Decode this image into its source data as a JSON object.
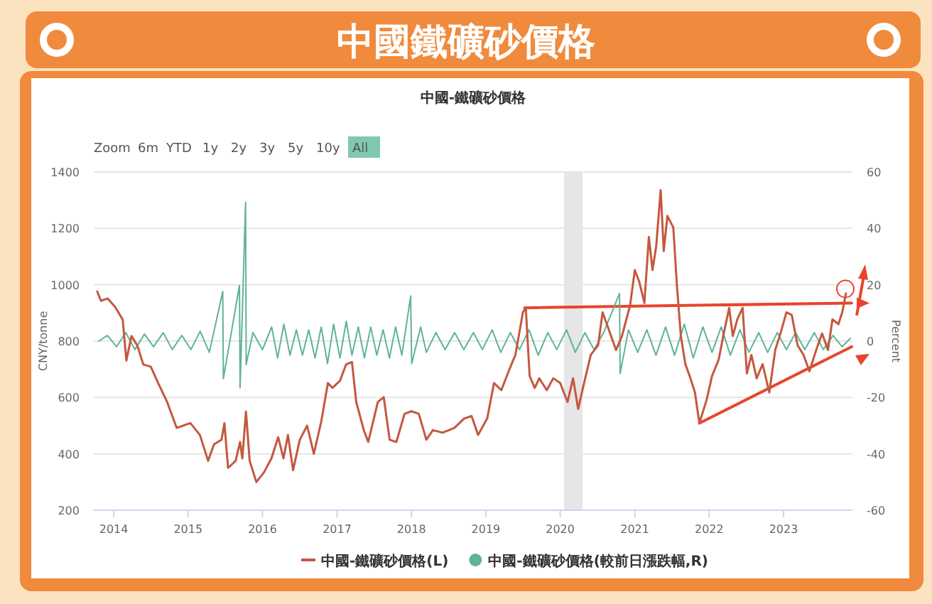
{
  "chart_data": {
    "type": "line",
    "title": "中國鐵礦砂價格",
    "subtitle": "中國-鐵礦砂價格",
    "annotations": [
      "Zoom",
      "6m",
      "YTD",
      "1y",
      "2y",
      "3y",
      "5y",
      "10y",
      "All"
    ],
    "ylabel": "CNY/tonne",
    "y2label": "Percent",
    "xlim": [
      "2013-09-25",
      "2023-12-05"
    ],
    "xticks": [
      "2014",
      "2015",
      "2016",
      "2017",
      "2018",
      "2019",
      "2020",
      "2021",
      "2022",
      "2023"
    ],
    "ylim": [
      200,
      1400
    ],
    "yticks": [
      200,
      400,
      600,
      800,
      1000,
      1200,
      1400
    ],
    "y2lim": [
      -60,
      60
    ],
    "y2ticks": [
      -60,
      -40,
      -20,
      0,
      20,
      40,
      60
    ],
    "grid": "y",
    "legend": "bottom",
    "bands": [
      {
        "axis": "x",
        "from": "2020-01-20",
        "to": "2020-04-20",
        "color": "#e6e6e6"
      }
    ],
    "series": [
      {
        "name": "中國-鐵礦砂價格(L)",
        "color": "#c4583f",
        "x": [
          "2013-10-12",
          "2013-10-30",
          "2013-12-02",
          "2014-01-08",
          "2014-02-14",
          "2014-03-04",
          "2014-03-29",
          "2014-04-27",
          "2014-05-26",
          "2014-07-02",
          "2014-08-07",
          "2014-09-20",
          "2014-11-06",
          "2015-01-12",
          "2015-02-28",
          "2015-04-09",
          "2015-05-08",
          "2015-06-14",
          "2015-06-28",
          "2015-07-16",
          "2015-08-22",
          "2015-09-13",
          "2015-09-24",
          "2015-10-12",
          "2015-10-30",
          "2015-12-02",
          "2016-01-08",
          "2016-02-14",
          "2016-03-18",
          "2016-04-13",
          "2016-05-05",
          "2016-05-30",
          "2016-07-02",
          "2016-08-07",
          "2016-09-09",
          "2016-10-16",
          "2016-11-17",
          "2016-12-09",
          "2017-01-15",
          "2017-02-14",
          "2017-03-15",
          "2017-04-05",
          "2017-05-12",
          "2017-06-03",
          "2017-07-20",
          "2017-08-18",
          "2017-09-16",
          "2017-10-19",
          "2017-11-28",
          "2018-01-01",
          "2018-02-06",
          "2018-03-15",
          "2018-04-16",
          "2018-06-03",
          "2018-07-31",
          "2018-09-16",
          "2018-10-23",
          "2018-11-24",
          "2019-01-01",
          "2019-01-08",
          "2019-02-10",
          "2019-03-18",
          "2019-04-23",
          "2019-05-26",
          "2019-07-02",
          "2019-07-16",
          "2019-08-04",
          "2019-08-29",
          "2019-09-20",
          "2019-10-27",
          "2019-11-28",
          "2020-01-01",
          "2020-02-06",
          "2020-03-04",
          "2020-03-29",
          "2020-04-27",
          "2020-05-30",
          "2020-07-05",
          "2020-07-27",
          "2020-09-02",
          "2020-10-01",
          "2020-10-30",
          "2020-12-09",
          "2021-01-01",
          "2021-01-23",
          "2021-02-17",
          "2021-03-11",
          "2021-03-29",
          "2021-04-16",
          "2021-05-08",
          "2021-05-23",
          "2021-06-10",
          "2021-07-09",
          "2021-07-27",
          "2021-08-15",
          "2021-09-06",
          "2021-10-01",
          "2021-10-23",
          "2021-11-14",
          "2021-12-20",
          "2022-01-15",
          "2022-02-17",
          "2022-03-11",
          "2022-04-09",
          "2022-04-27",
          "2022-05-19",
          "2022-06-14",
          "2022-07-05",
          "2022-07-27",
          "2022-08-22",
          "2022-09-20",
          "2022-10-23",
          "2022-11-21",
          "2022-12-20",
          "2023-01-15",
          "2023-02-10",
          "2023-03-11",
          "2023-04-09",
          "2023-05-08",
          "2023-06-10",
          "2023-07-09",
          "2023-08-07",
          "2023-08-29",
          "2023-09-27",
          "2023-10-16",
          "2023-11-03"
        ],
        "values": [
          976,
          943,
          951,
          921,
          876,
          731,
          818,
          784,
          717,
          709,
          651,
          584,
          492,
          509,
          467,
          375,
          434,
          450,
          509,
          350,
          375,
          442,
          384,
          550,
          375,
          300,
          334,
          384,
          459,
          384,
          467,
          342,
          450,
          500,
          400,
          517,
          651,
          634,
          659,
          717,
          726,
          584,
          484,
          442,
          584,
          601,
          450,
          442,
          542,
          551,
          542,
          450,
          484,
          475,
          492,
          525,
          534,
          467,
          517,
          526,
          651,
          626,
          693,
          751,
          902,
          918,
          676,
          634,
          668,
          626,
          668,
          651,
          584,
          668,
          559,
          651,
          751,
          785,
          902,
          827,
          768,
          818,
          927,
          1052,
          1010,
          935,
          1169,
          1052,
          1136,
          1336,
          1119,
          1244,
          1203,
          994,
          818,
          718,
          668,
          618,
          509,
          593,
          676,
          735,
          818,
          918,
          818,
          877,
          918,
          685,
          751,
          668,
          718,
          618,
          768,
          835,
          902,
          893,
          785,
          751,
          693,
          768,
          827,
          768,
          877,
          860,
          902,
          969
        ]
      },
      {
        "name": "中國-鐵礦砂價格(較前日漲跌幅,R)",
        "color": "#5fb39a",
        "axis": "y2",
        "x": [
          "2013-10-20",
          "2013-12-01",
          "2014-01-15",
          "2014-03-01",
          "2014-04-15",
          "2014-06-01",
          "2014-07-15",
          "2014-09-01",
          "2014-10-15",
          "2014-12-01",
          "2015-01-15",
          "2015-03-01",
          "2015-04-15",
          "2015-06-20",
          "2015-06-23",
          "2015-08-01",
          "2015-09-10",
          "2015-09-13",
          "2015-10-10",
          "2015-10-13",
          "2015-11-15",
          "2016-01-01",
          "2016-02-15",
          "2016-03-15",
          "2016-04-15",
          "2016-05-15",
          "2016-06-15",
          "2016-07-15",
          "2016-08-15",
          "2016-09-15",
          "2016-10-15",
          "2016-11-15",
          "2016-12-15",
          "2017-01-15",
          "2017-02-15",
          "2017-03-15",
          "2017-04-15",
          "2017-05-15",
          "2017-06-15",
          "2017-07-15",
          "2017-08-15",
          "2017-09-15",
          "2017-10-15",
          "2017-11-15",
          "2017-12-28",
          "2018-01-02",
          "2018-02-15",
          "2018-03-15",
          "2018-05-01",
          "2018-06-15",
          "2018-08-01",
          "2018-09-15",
          "2018-11-01",
          "2018-12-15",
          "2019-02-01",
          "2019-03-15",
          "2019-05-01",
          "2019-06-15",
          "2019-08-01",
          "2019-09-15",
          "2019-11-01",
          "2019-12-15",
          "2020-02-01",
          "2020-03-15",
          "2020-05-01",
          "2020-06-15",
          "2020-08-01",
          "2020-10-18",
          "2020-10-21",
          "2020-12-01",
          "2021-01-15",
          "2021-03-01",
          "2021-04-15",
          "2021-06-01",
          "2021-07-15",
          "2021-09-01",
          "2021-10-15",
          "2021-12-01",
          "2022-01-15",
          "2022-03-01",
          "2022-04-15",
          "2022-06-01",
          "2022-07-15",
          "2022-09-01",
          "2022-10-15",
          "2022-12-01",
          "2023-01-15",
          "2023-03-01",
          "2023-04-15",
          "2023-06-01",
          "2023-07-15",
          "2023-09-01",
          "2023-10-15",
          "2023-11-25"
        ],
        "values": [
          0,
          2,
          -2,
          3,
          -3,
          2.5,
          -2,
          3,
          -3,
          2,
          -3,
          3.5,
          -4,
          17.6,
          -13.3,
          3,
          19.8,
          -16.6,
          49.3,
          -8.3,
          3,
          -3,
          5,
          -6,
          6,
          -5,
          4,
          -5,
          4,
          -6,
          5,
          -8,
          6,
          -6,
          7,
          -5,
          5,
          -6,
          5,
          -5,
          4,
          -6,
          5,
          -5,
          16,
          -8,
          5,
          -4,
          3,
          -3,
          3,
          -3,
          3,
          -3,
          4,
          -4,
          3,
          -3,
          4,
          -5,
          3,
          -3,
          4,
          -4,
          3,
          -3,
          3,
          16.9,
          -11.5,
          4,
          -4,
          4,
          -5,
          5,
          -5,
          6,
          -6,
          5,
          -4,
          5,
          -5,
          4,
          -4,
          3,
          -4,
          3,
          -3,
          3,
          -3,
          3,
          -3,
          2,
          -2,
          1
        ]
      },
      {
        "color": "#e8452c",
        "x": [
          "2019-07-10",
          "2023-12-01"
        ],
        "values": [
          918,
          935
        ]
      },
      {
        "color": "#e8452c",
        "x": [
          "2021-11-14",
          "2023-12-01"
        ],
        "values": [
          509,
          780
        ]
      }
    ]
  }
}
